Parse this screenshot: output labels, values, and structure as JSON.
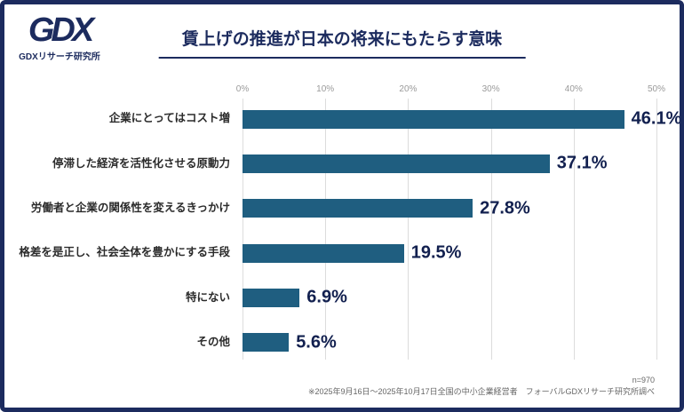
{
  "logo": {
    "mark": "GDX",
    "subtitle": "GDXリサーチ研究所"
  },
  "header": {
    "title": "賃上げの推進が日本の将来にもたらす意味"
  },
  "chart_data": {
    "type": "bar",
    "orientation": "horizontal",
    "title": "賃上げの推進が日本の将来にもたらす意味",
    "categories": [
      "企業にとってはコスト増",
      "停滞した経済を活性化させる原動力",
      "労働者と企業の関係性を変えるきっかけ",
      "格差を是正し、社会全体を豊かにする手段",
      "特にない",
      "その他"
    ],
    "values": [
      46.1,
      37.1,
      27.8,
      19.5,
      6.9,
      5.6
    ],
    "value_labels": [
      "46.1%",
      "37.1%",
      "27.8%",
      "19.5%",
      "6.9%",
      "5.6%"
    ],
    "xlim": [
      0,
      50
    ],
    "x_ticks": [
      "0%",
      "10%",
      "20%",
      "30%",
      "40%",
      "50%"
    ],
    "grid": true,
    "legend": "none",
    "bar_color": "#1f5e80"
  },
  "footer": {
    "sample": "n=970",
    "note": "※2025年9月16日～2025年10月17日全国の中小企業経営者　フォーバルGDXリサーチ研究所調べ"
  },
  "colors": {
    "border": "#1c2b5e",
    "title": "#1c2b5e",
    "bar": "#1f5e80",
    "value_label": "#12204f",
    "gridline": "#dcdcdc"
  }
}
